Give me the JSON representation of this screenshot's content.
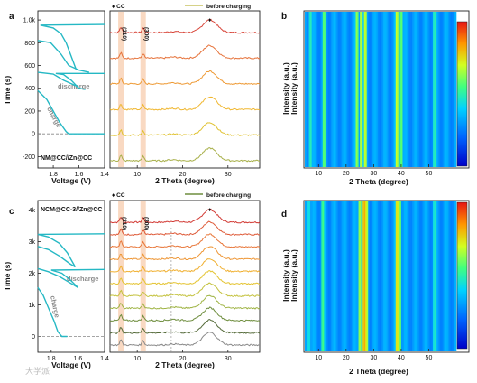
{
  "figure": {
    "watermark": "大学派",
    "top": {
      "panel_a": {
        "letter": "a",
        "sample": "NM@CC//Zn@CC",
        "annotations": [
          "discharge",
          "charge"
        ]
      },
      "panel_mid": {
        "legend_marker": "♦ CC",
        "legend_line": "before charging",
        "peak_labels": [
          "(210)",
          "(300)"
        ],
        "peak_marker": "♦"
      },
      "panel_b": {
        "letter": "b"
      }
    },
    "bottom": {
      "panel_c": {
        "letter": "c",
        "sample": "NCM@CC-3//Zn@CC",
        "annotations": [
          "discharge",
          "charge"
        ]
      },
      "panel_mid": {
        "legend_marker": "♦ CC",
        "legend_line": "before charging",
        "peak_labels": [
          "(210)",
          "(300)"
        ],
        "peak_marker": "♦"
      },
      "panel_d": {
        "letter": "d"
      }
    }
  },
  "chart_data": [
    {
      "panel": "a",
      "type": "line",
      "xlabel": "Voltage (V)",
      "ylabel": "Time (s)",
      "x_ticks": [
        "1.8",
        "1.6",
        "1.4"
      ],
      "y_ticks": [
        "-200",
        "0",
        "200",
        "400",
        "600",
        "800",
        "1.0k"
      ],
      "xlim": [
        1.92,
        1.4
      ],
      "ylim": [
        -300,
        1080
      ],
      "reference_line_y": 0,
      "series": [
        {
          "points": [
            [
              1.92,
              380
            ],
            [
              1.85,
              300
            ],
            [
              1.8,
              200
            ],
            [
              1.75,
              100
            ],
            [
              1.7,
              20
            ],
            [
              1.68,
              0
            ]
          ]
        },
        {
          "points": [
            [
              1.68,
              0
            ],
            [
              1.4,
              0
            ]
          ]
        },
        {
          "points": [
            [
              1.92,
              540
            ],
            [
              1.8,
              525
            ],
            [
              1.72,
              470
            ],
            [
              1.62,
              420
            ],
            [
              1.6,
              400
            ],
            [
              1.55,
              390
            ]
          ]
        },
        {
          "points": [
            [
              1.6,
              400
            ],
            [
              1.66,
              470
            ],
            [
              1.72,
              520
            ],
            [
              1.78,
              530
            ],
            [
              1.4,
              530
            ]
          ]
        },
        {
          "points": [
            [
              1.92,
              820
            ],
            [
              1.82,
              800
            ],
            [
              1.74,
              700
            ],
            [
              1.68,
              600
            ],
            [
              1.6,
              560
            ],
            [
              1.52,
              540
            ]
          ]
        },
        {
          "points": [
            [
              1.62,
              560
            ],
            [
              1.66,
              680
            ],
            [
              1.7,
              800
            ],
            [
              1.74,
              880
            ],
            [
              1.8,
              930
            ],
            [
              1.9,
              955
            ],
            [
              1.4,
              960
            ]
          ]
        }
      ]
    },
    {
      "panel": "a-xrd",
      "type": "line",
      "xlabel": "2 Theta (degree)",
      "ylabel": "",
      "x_ticks": [
        "10",
        "20",
        "30"
      ],
      "xlim": [
        4,
        37
      ],
      "peaks": [
        {
          "label": "(210)",
          "x": 6.4
        },
        {
          "label": "(300)",
          "x": 11.3
        },
        {
          "label": "♦",
          "x": 26.0
        }
      ],
      "series_colors": [
        "#d8463a",
        "#e6733b",
        "#ee9a35",
        "#f0b730",
        "#e0c230",
        "#a8b04a"
      ],
      "series_note": "before charging",
      "bottom_color": "#a8b04a"
    },
    {
      "panel": "b",
      "type": "heatmap",
      "xlabel": "2 Theta (degree)",
      "ylabel": "Intensity (a.u.)",
      "x_ticks": [
        "10",
        "20",
        "30",
        "40",
        "50"
      ],
      "xlim": [
        5,
        60
      ],
      "bands": [
        {
          "x": 7.0,
          "level": 0.45
        },
        {
          "x": 12.0,
          "level": 0.5
        },
        {
          "x": 24.0,
          "level": 0.7
        },
        {
          "x": 25.5,
          "level": 0.9
        },
        {
          "x": 27.0,
          "level": 0.75
        },
        {
          "x": 38.5,
          "level": 0.8
        },
        {
          "x": 40.0,
          "level": 0.7
        },
        {
          "x": 52.0,
          "level": 0.35
        }
      ]
    },
    {
      "panel": "c",
      "type": "line",
      "xlabel": "Voltage (V)",
      "ylabel": "Time (s)",
      "x_ticks": [
        "1.8",
        "1.6",
        "1.4"
      ],
      "y_ticks": [
        "0",
        "1k",
        "2k",
        "3k",
        "4k"
      ],
      "xlim": [
        1.9,
        1.4
      ],
      "ylim": [
        -500,
        4300
      ],
      "reference_line_y": 0,
      "series": [
        {
          "points": [
            [
              1.9,
              1550
            ],
            [
              1.86,
              1300
            ],
            [
              1.82,
              900
            ],
            [
              1.78,
              500
            ],
            [
              1.75,
              150
            ],
            [
              1.72,
              0
            ],
            [
              1.68,
              0
            ]
          ]
        },
        {
          "points": [
            [
              1.9,
              2150
            ],
            [
              1.82,
              2050
            ],
            [
              1.74,
              1900
            ],
            [
              1.64,
              1650
            ],
            [
              1.6,
              1550
            ]
          ]
        },
        {
          "points": [
            [
              1.6,
              1550
            ],
            [
              1.66,
              1800
            ],
            [
              1.72,
              2000
            ],
            [
              1.8,
              2100
            ],
            [
              1.4,
              2120
            ]
          ]
        },
        {
          "points": [
            [
              1.9,
              2850
            ],
            [
              1.82,
              2750
            ],
            [
              1.74,
              2550
            ],
            [
              1.66,
              2300
            ],
            [
              1.62,
              2200
            ]
          ]
        },
        {
          "points": [
            [
              1.62,
              2200
            ],
            [
              1.68,
              2650
            ],
            [
              1.74,
              2950
            ],
            [
              1.82,
              3150
            ],
            [
              1.9,
              3230
            ],
            [
              1.4,
              3250
            ]
          ]
        }
      ]
    },
    {
      "panel": "c-xrd",
      "type": "line",
      "xlabel": "2 Theta (degree)",
      "ylabel": "",
      "x_ticks": [
        "10",
        "20",
        "30"
      ],
      "xlim": [
        4,
        37
      ],
      "peaks": [
        {
          "label": "(210)",
          "x": 6.4
        },
        {
          "label": "(300)",
          "x": 11.3
        },
        {
          "label": "♦",
          "x": 26.0
        }
      ],
      "series_colors": [
        "#d23b35",
        "#de5a38",
        "#e8773a",
        "#ee9737",
        "#f0b031",
        "#e4c432",
        "#c4c23e",
        "#9fb444",
        "#6f8e3f",
        "#556b3a",
        "#8a8a8a"
      ],
      "series_note": "before charging",
      "bottom_color": "#8a8a8a"
    },
    {
      "panel": "d",
      "type": "heatmap",
      "xlabel": "2 Theta (degree)",
      "ylabel": "Intensity (a.u.)",
      "x_ticks": [
        "10",
        "20",
        "30",
        "40",
        "50"
      ],
      "xlim": [
        5,
        60
      ],
      "bands": [
        {
          "x": 6.5,
          "level": 0.4
        },
        {
          "x": 11.5,
          "level": 0.45
        },
        {
          "x": 25.0,
          "level": 0.85
        },
        {
          "x": 26.5,
          "level": 1.0
        },
        {
          "x": 27.5,
          "level": 0.8
        },
        {
          "x": 38.5,
          "level": 0.9
        },
        {
          "x": 39.5,
          "level": 0.75
        },
        {
          "x": 52.0,
          "level": 0.3
        }
      ]
    }
  ]
}
